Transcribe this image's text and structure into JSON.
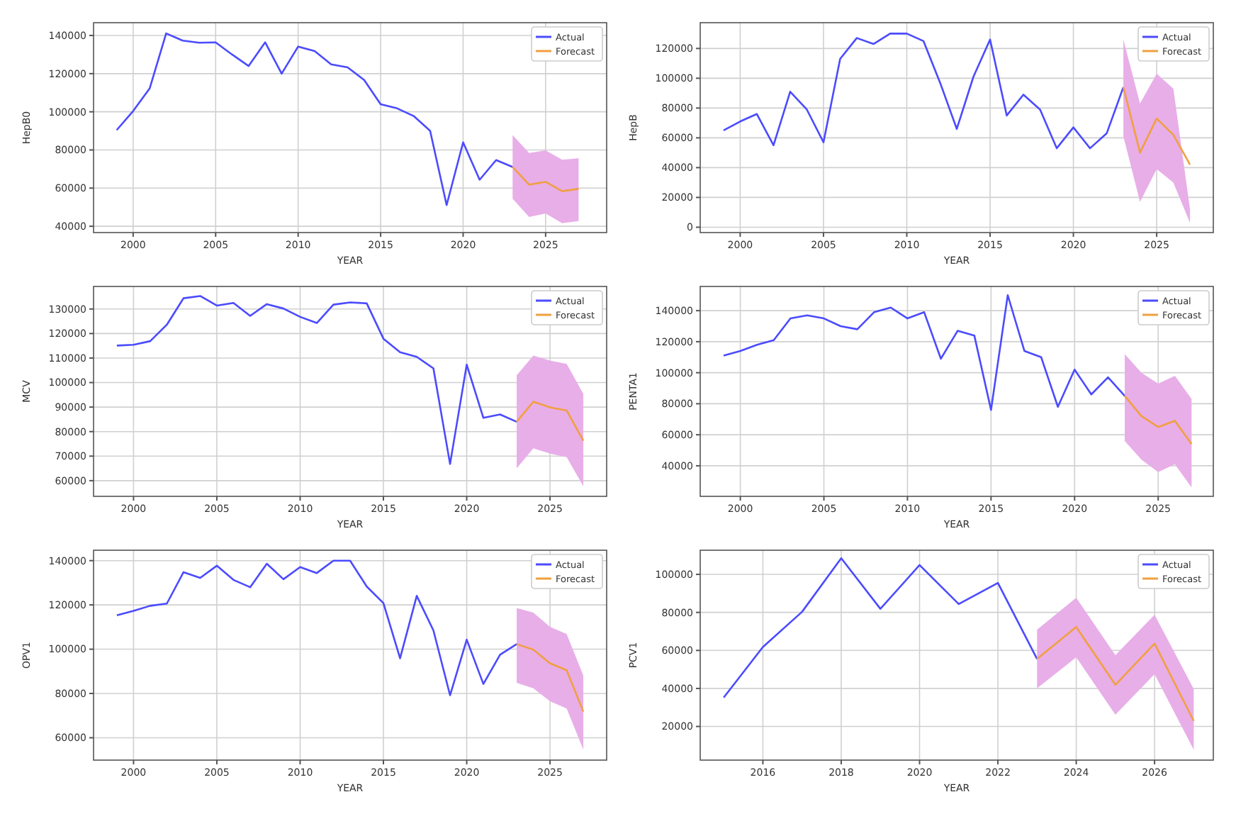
{
  "chart_data": [
    {
      "type": "line",
      "xlabel": "YEAR",
      "ylabel": "HepB0",
      "xlim": [
        1997.6,
        2028.7
      ],
      "ylim": [
        36700,
        146700
      ],
      "xticks": [
        2000,
        2005,
        2010,
        2015,
        2020,
        2025
      ],
      "yticks": [
        40000,
        60000,
        80000,
        100000,
        120000,
        140000
      ],
      "grid": true,
      "legend": "top right",
      "series": [
        {
          "name": "Actual",
          "color": "#4b4bff",
          "x": [
            1999,
            2000,
            2001,
            2002,
            2003,
            2004,
            2005,
            2006,
            2007,
            2008,
            2009,
            2010,
            2011,
            2012,
            2013,
            2014,
            2015,
            2016,
            2017,
            2018,
            2019,
            2020,
            2021,
            2022,
            2023
          ],
          "values": [
            90400,
            100400,
            112200,
            141100,
            137300,
            136200,
            136400,
            130000,
            124000,
            136400,
            120000,
            134200,
            131800,
            124900,
            123300,
            116700,
            104000,
            101800,
            97800,
            90000,
            51100,
            84000,
            64400,
            74700,
            71100
          ]
        },
        {
          "name": "Forecast",
          "color": "#f0a040",
          "x": [
            2023,
            2024,
            2025,
            2026,
            2027
          ],
          "values": [
            71100,
            61800,
            63300,
            58400,
            59600
          ],
          "lower": [
            54400,
            44900,
            46700,
            41600,
            42700
          ],
          "upper": [
            87800,
            78400,
            79800,
            74900,
            75600
          ]
        }
      ]
    },
    {
      "type": "line",
      "xlabel": "YEAR",
      "ylabel": "HepB",
      "xlim": [
        1997.6,
        2028.4
      ],
      "ylim": [
        -3600,
        137300
      ],
      "xticks": [
        2000,
        2005,
        2010,
        2015,
        2020,
        2025
      ],
      "yticks": [
        0,
        20000,
        40000,
        60000,
        80000,
        100000,
        120000
      ],
      "grid": true,
      "legend": "top right",
      "series": [
        {
          "name": "Actual",
          "color": "#4b4bff",
          "x": [
            1999,
            2000,
            2001,
            2002,
            2003,
            2004,
            2005,
            2006,
            2007,
            2008,
            2009,
            2010,
            2011,
            2012,
            2013,
            2014,
            2015,
            2016,
            2017,
            2018,
            2019,
            2020,
            2021,
            2022,
            2023
          ],
          "values": [
            65000,
            71000,
            76000,
            55000,
            91000,
            79000,
            57000,
            113000,
            127000,
            123000,
            130000,
            130000,
            125000,
            97000,
            66000,
            101000,
            126000,
            75000,
            89000,
            79000,
            53000,
            67000,
            53000,
            63000,
            94000
          ]
        },
        {
          "name": "Forecast",
          "color": "#f0a040",
          "x": [
            2023,
            2024,
            2025,
            2026,
            2027
          ],
          "values": [
            94000,
            50000,
            73000,
            62000,
            42000
          ],
          "lower": [
            61000,
            17000,
            39000,
            30000,
            3000
          ],
          "upper": [
            126000,
            83000,
            103000,
            93000,
            12000
          ]
        }
      ]
    },
    {
      "type": "line",
      "xlabel": "YEAR",
      "ylabel": "MCV",
      "xlim": [
        1997.6,
        2028.4
      ],
      "ylim": [
        53600,
        139200
      ],
      "xticks": [
        2000,
        2005,
        2010,
        2015,
        2020,
        2025
      ],
      "yticks": [
        60000,
        70000,
        80000,
        90000,
        100000,
        110000,
        120000,
        130000
      ],
      "grid": true,
      "legend": "top right",
      "series": [
        {
          "name": "Actual",
          "color": "#4b4bff",
          "x": [
            1999,
            2000,
            2001,
            2002,
            2003,
            2004,
            2005,
            2006,
            2007,
            2008,
            2009,
            2010,
            2011,
            2012,
            2013,
            2014,
            2015,
            2016,
            2017,
            2018,
            2019,
            2020,
            2021,
            2022,
            2023
          ],
          "values": [
            115100,
            115400,
            116900,
            123600,
            134400,
            135300,
            131400,
            132500,
            127200,
            132000,
            130200,
            126800,
            124300,
            131800,
            132700,
            132300,
            117900,
            112400,
            110500,
            105800,
            66800,
            107300,
            85600,
            87000,
            84000
          ]
        },
        {
          "name": "Forecast",
          "color": "#f0a040",
          "x": [
            2023,
            2024,
            2025,
            2026,
            2027
          ],
          "values": [
            84000,
            92200,
            89900,
            88600,
            76300
          ],
          "lower": [
            65000,
            73200,
            71000,
            69600,
            57700
          ],
          "upper": [
            103000,
            111000,
            109000,
            107600,
            95400
          ]
        }
      ]
    },
    {
      "type": "line",
      "xlabel": "YEAR",
      "ylabel": "PENTA1",
      "xlim": [
        1997.6,
        2028.3
      ],
      "ylim": [
        20300,
        155600
      ],
      "xticks": [
        2000,
        2005,
        2010,
        2015,
        2020,
        2025
      ],
      "yticks": [
        40000,
        60000,
        80000,
        100000,
        120000,
        140000
      ],
      "grid": true,
      "legend": "top right",
      "series": [
        {
          "name": "Actual",
          "color": "#4b4bff",
          "x": [
            1999,
            2000,
            2001,
            2002,
            2003,
            2004,
            2005,
            2006,
            2007,
            2008,
            2009,
            2010,
            2011,
            2012,
            2013,
            2014,
            2015,
            2016,
            2017,
            2018,
            2019,
            2020,
            2021,
            2022,
            2023
          ],
          "values": [
            111000,
            114000,
            118000,
            121000,
            135000,
            137000,
            135000,
            130000,
            128000,
            139000,
            142000,
            135000,
            139000,
            109000,
            127000,
            124000,
            76000,
            150000,
            114000,
            110000,
            78000,
            102000,
            86000,
            97000,
            85000
          ]
        },
        {
          "name": "Forecast",
          "color": "#f0a040",
          "x": [
            2023,
            2024,
            2025,
            2026,
            2027
          ],
          "values": [
            85000,
            72000,
            65000,
            69000,
            54000
          ],
          "lower": [
            56000,
            44000,
            36000,
            41000,
            26000
          ],
          "upper": [
            112000,
            100000,
            93000,
            98000,
            83000
          ]
        }
      ]
    },
    {
      "type": "line",
      "xlabel": "YEAR",
      "ylabel": "OPV1",
      "xlim": [
        1997.6,
        2028.4
      ],
      "ylim": [
        49900,
        144700
      ],
      "xticks": [
        2000,
        2005,
        2010,
        2015,
        2020,
        2025
      ],
      "yticks": [
        60000,
        80000,
        100000,
        120000,
        140000
      ],
      "grid": true,
      "legend": "top right",
      "series": [
        {
          "name": "Actual",
          "color": "#4b4bff",
          "x": [
            1999,
            2000,
            2001,
            2002,
            2003,
            2004,
            2005,
            2006,
            2007,
            2008,
            2009,
            2010,
            2011,
            2012,
            2013,
            2014,
            2015,
            2016,
            2017,
            2018,
            2019,
            2020,
            2021,
            2022,
            2023
          ],
          "values": [
            115300,
            117300,
            119600,
            120600,
            134800,
            132200,
            137700,
            131300,
            128000,
            138600,
            131600,
            137100,
            134400,
            140000,
            140000,
            128300,
            120800,
            95900,
            124100,
            108500,
            79200,
            104300,
            84300,
            97500,
            102300
          ]
        },
        {
          "name": "Forecast",
          "color": "#f0a040",
          "x": [
            2023,
            2024,
            2025,
            2026,
            2027
          ],
          "values": [
            102300,
            99800,
            93600,
            90500,
            71800
          ],
          "lower": [
            84800,
            82300,
            76500,
            73200,
            54600
          ],
          "upper": [
            118600,
            116500,
            110100,
            106800,
            88100
          ]
        }
      ]
    },
    {
      "type": "line",
      "xlabel": "YEAR",
      "ylabel": "PCV1",
      "xlim": [
        2014.4,
        2027.5
      ],
      "ylim": [
        2300,
        112700
      ],
      "xticks": [
        2016,
        2018,
        2020,
        2022,
        2024,
        2026
      ],
      "yticks": [
        20000,
        40000,
        60000,
        80000,
        100000
      ],
      "grid": true,
      "legend": "top right",
      "series": [
        {
          "name": "Actual",
          "color": "#4b4bff",
          "x": [
            2015,
            2016,
            2017,
            2018,
            2019,
            2020,
            2021,
            2022,
            2023
          ],
          "values": [
            35200,
            61800,
            80300,
            108500,
            81900,
            104900,
            84400,
            95500,
            55500
          ]
        },
        {
          "name": "Forecast",
          "color": "#f0a040",
          "x": [
            2023,
            2024,
            2025,
            2026,
            2027
          ],
          "values": [
            55500,
            72300,
            41900,
            63600,
            22900
          ],
          "lower": [
            40100,
            56400,
            26200,
            47500,
            7700
          ],
          "upper": [
            70900,
            87700,
            57500,
            78800,
            39700
          ]
        }
      ]
    }
  ]
}
